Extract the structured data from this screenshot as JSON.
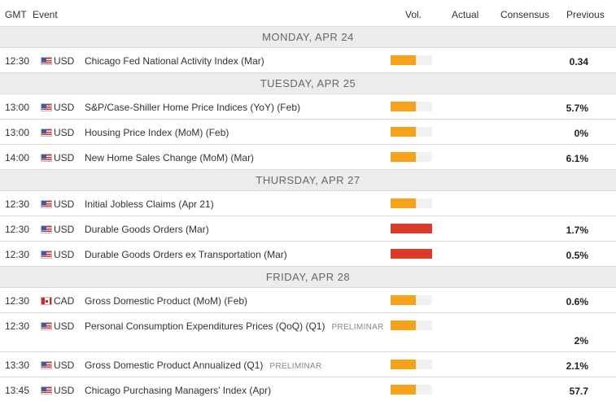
{
  "header": {
    "gmt": "GMT",
    "event": "Event",
    "vol": "Vol.",
    "actual": "Actual",
    "consensus": "Consensus",
    "previous": "Previous"
  },
  "colors": {
    "medium": "#f5a31a",
    "high": "#dd3a2b",
    "empty": "#f1f1f1"
  },
  "days": [
    {
      "label": "MONDAY, APR 24",
      "events": [
        {
          "time": "12:30",
          "flag": "us-flag-icon",
          "currency": "USD",
          "name": "Chicago Fed National Activity Index (Mar)",
          "tag": "",
          "volatility": "medium",
          "volatility_fraction": 0.6,
          "actual": "",
          "consensus": "",
          "previous": "0.34"
        }
      ]
    },
    {
      "label": "TUESDAY, APR 25",
      "events": [
        {
          "time": "13:00",
          "flag": "us-flag-icon",
          "currency": "USD",
          "name": "S&P/Case-Shiller Home Price Indices (YoY) (Feb)",
          "tag": "",
          "volatility": "medium",
          "volatility_fraction": 0.6,
          "actual": "",
          "consensus": "",
          "previous": "5.7%"
        },
        {
          "time": "13:00",
          "flag": "us-flag-icon",
          "currency": "USD",
          "name": "Housing Price Index (MoM) (Feb)",
          "tag": "",
          "volatility": "medium",
          "volatility_fraction": 0.6,
          "actual": "",
          "consensus": "",
          "previous": "0%"
        },
        {
          "time": "14:00",
          "flag": "us-flag-icon",
          "currency": "USD",
          "name": "New Home Sales Change (MoM) (Mar)",
          "tag": "",
          "volatility": "medium",
          "volatility_fraction": 0.6,
          "actual": "",
          "consensus": "",
          "previous": "6.1%"
        }
      ]
    },
    {
      "label": "THURSDAY, APR 27",
      "events": [
        {
          "time": "12:30",
          "flag": "us-flag-icon",
          "currency": "USD",
          "name": "Initial Jobless Claims (Apr 21)",
          "tag": "",
          "volatility": "medium",
          "volatility_fraction": 0.6,
          "actual": "",
          "consensus": "",
          "previous": ""
        },
        {
          "time": "12:30",
          "flag": "us-flag-icon",
          "currency": "USD",
          "name": "Durable Goods Orders (Mar)",
          "tag": "",
          "volatility": "high",
          "volatility_fraction": 1.0,
          "actual": "",
          "consensus": "",
          "previous": "1.7%"
        },
        {
          "time": "12:30",
          "flag": "us-flag-icon",
          "currency": "USD",
          "name": "Durable Goods Orders ex Transportation (Mar)",
          "tag": "",
          "volatility": "high",
          "volatility_fraction": 1.0,
          "actual": "",
          "consensus": "",
          "previous": "0.5%"
        }
      ]
    },
    {
      "label": "FRIDAY, APR 28",
      "events": [
        {
          "time": "12:30",
          "flag": "ca-flag-icon",
          "currency": "CAD",
          "name": "Gross Domestic Product (MoM) (Feb)",
          "tag": "",
          "volatility": "medium",
          "volatility_fraction": 0.6,
          "actual": "",
          "consensus": "",
          "previous": "0.6%"
        },
        {
          "time": "12:30",
          "flag": "us-flag-icon",
          "currency": "USD",
          "name": "Personal Consumption Expenditures Prices (QoQ) (Q1)",
          "tag": "PRELIMINAR",
          "volatility": "medium",
          "volatility_fraction": 0.6,
          "actual": "",
          "consensus": "",
          "previous": "2%",
          "tall": true
        },
        {
          "time": "13:30",
          "flag": "us-flag-icon",
          "currency": "USD",
          "name": "Gross Domestic Product Annualized (Q1)",
          "tag": "PRELIMINAR",
          "volatility": "medium",
          "volatility_fraction": 0.6,
          "actual": "",
          "consensus": "",
          "previous": "2.1%"
        },
        {
          "time": "13:45",
          "flag": "us-flag-icon",
          "currency": "USD",
          "name": "Chicago Purchasing Managers' Index (Apr)",
          "tag": "",
          "volatility": "medium",
          "volatility_fraction": 0.6,
          "actual": "",
          "consensus": "",
          "previous": "57.7"
        }
      ]
    }
  ]
}
